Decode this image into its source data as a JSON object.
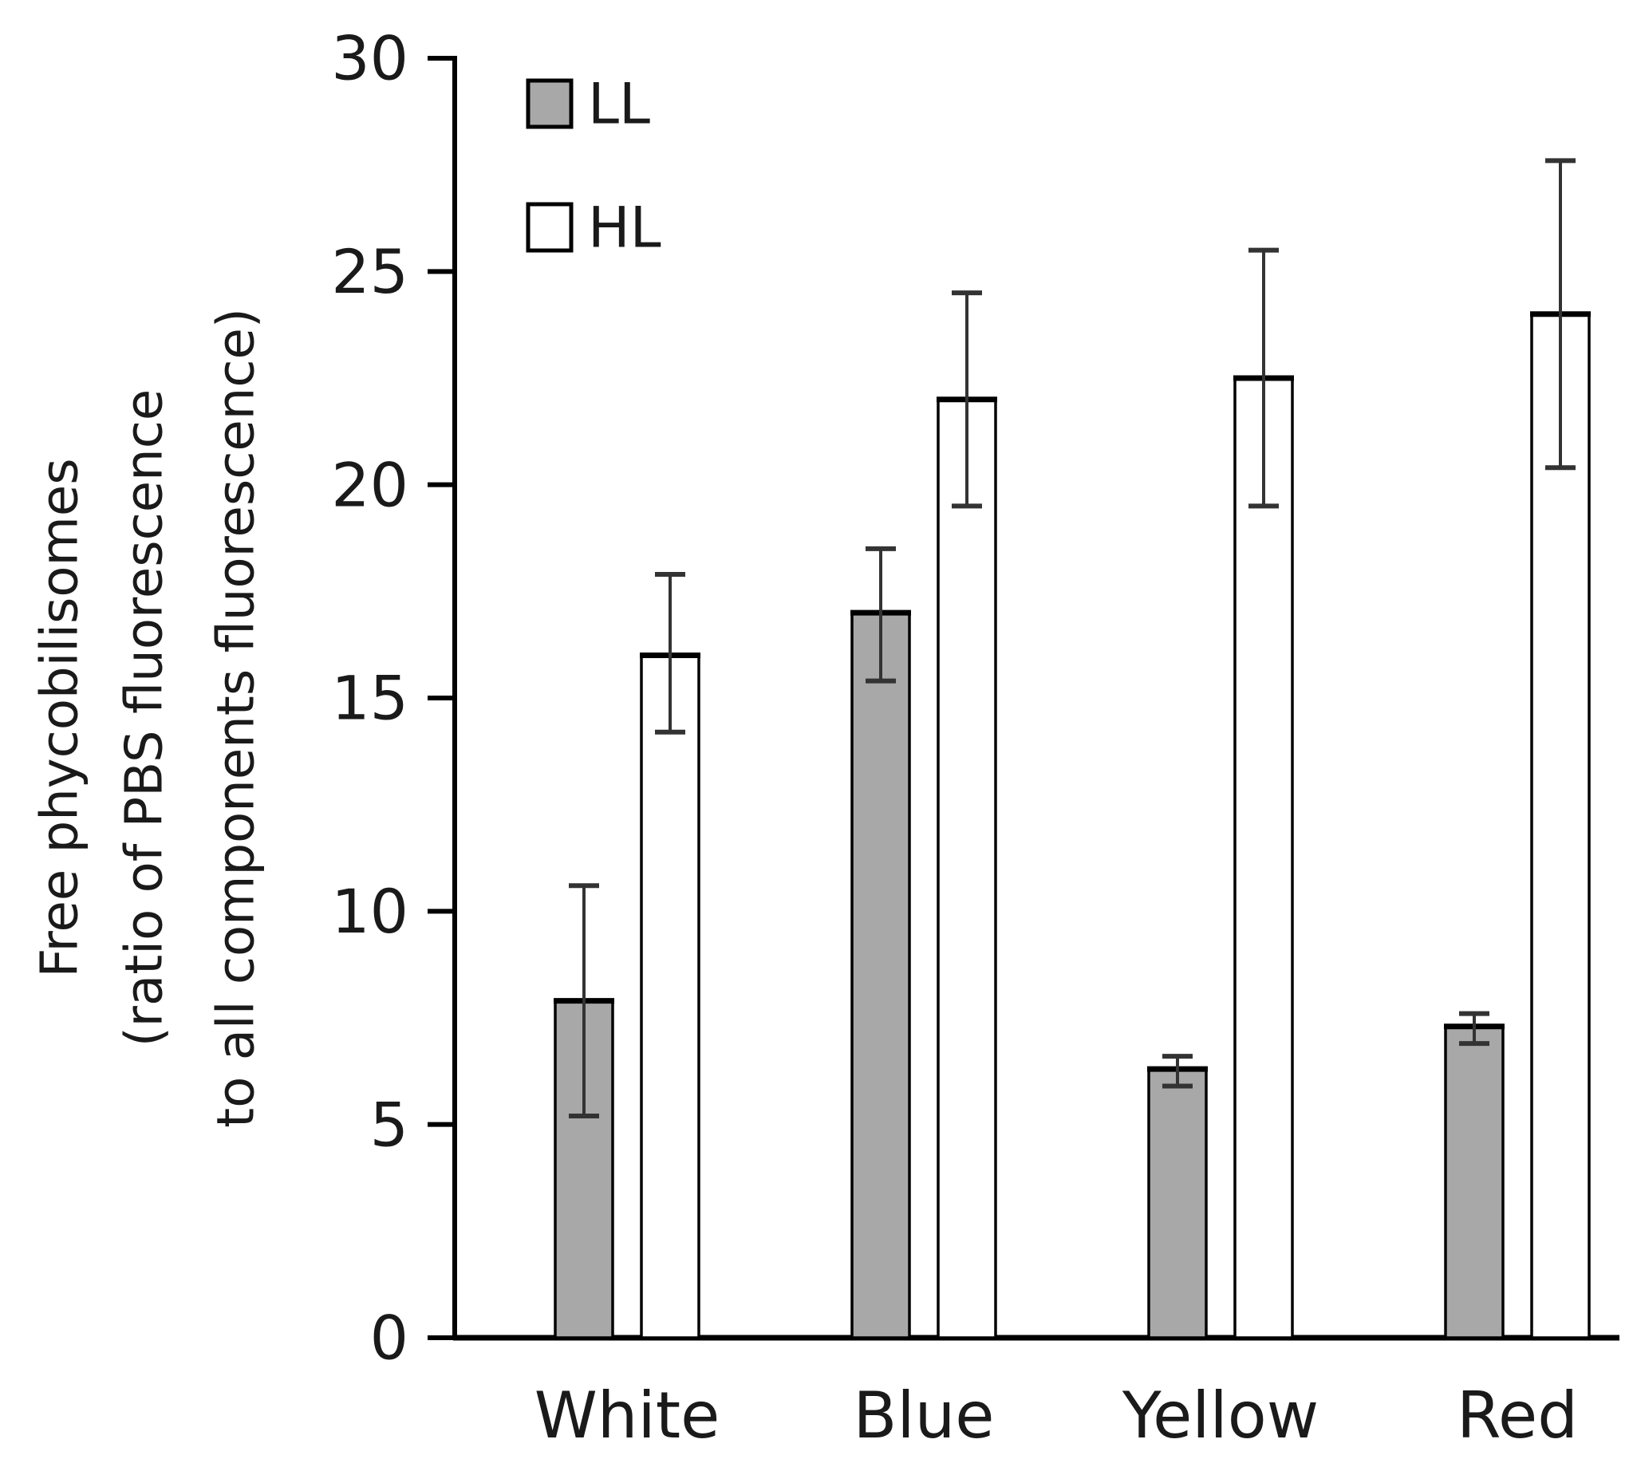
{
  "chart_data": {
    "type": "bar",
    "title": "",
    "categories": [
      "White",
      "Blue",
      "Yellow",
      "Red"
    ],
    "series": [
      {
        "name": "LL",
        "fill": "#a8a8a8",
        "values": [
          7.9,
          17.0,
          6.3,
          7.3
        ],
        "err_up": [
          2.7,
          1.5,
          0.3,
          0.3
        ],
        "err_down": [
          2.7,
          1.6,
          0.4,
          0.4
        ]
      },
      {
        "name": "HL",
        "fill": "#ffffff",
        "values": [
          16.0,
          22.0,
          22.5,
          24.0
        ],
        "err_up": [
          1.9,
          2.5,
          3.0,
          3.6
        ],
        "err_down": [
          1.8,
          2.5,
          3.0,
          3.6
        ]
      }
    ],
    "ylabel_lines": [
      "Free phycobilisomes",
      "(ratio of PBS fluorescence",
      "to all components fluorescence)"
    ],
    "xlabel": "",
    "yticks": [
      0,
      5,
      10,
      15,
      20,
      25,
      30
    ],
    "ylim": [
      0,
      30
    ],
    "legend": {
      "position": "top-left-inside",
      "entries": [
        "LL",
        "HL"
      ]
    },
    "grid": false,
    "colors": {
      "background": "#ffffff",
      "text": "#1a1a1a",
      "axis": "#000000",
      "bar_outline": "#000000",
      "error_bar": "#333333",
      "ll_fill": "#a8a8a8",
      "hl_fill": "#ffffff"
    }
  }
}
